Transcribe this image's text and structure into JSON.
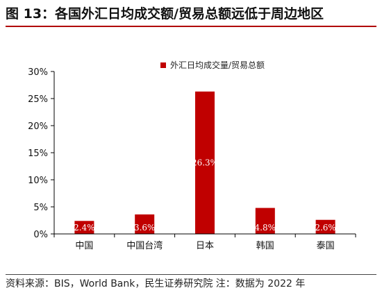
{
  "title": "图 13：各国外汇日均成交额/贸易总额远低于周边地区",
  "source": "资料来源：BIS，World Bank，民生证券研究院 注：数据为 2022 年",
  "colors": {
    "bar": "#c00000",
    "title_rule": "#b00000"
  },
  "chart_data": {
    "type": "bar",
    "categories": [
      "中国",
      "中国台湾",
      "日本",
      "韩国",
      "泰国"
    ],
    "series": [
      {
        "name": "外汇日均成交量/贸易总额",
        "values": [
          2.4,
          3.6,
          26.3,
          4.8,
          2.6
        ]
      }
    ],
    "data_labels": [
      "2.4%",
      "3.6%",
      "26.3%",
      "4.8%",
      "2.6%"
    ],
    "ylim": [
      0,
      30
    ],
    "yticks": [
      "0%",
      "5%",
      "10%",
      "15%",
      "20%",
      "25%",
      "30%"
    ],
    "grid": false,
    "legend": "top"
  }
}
